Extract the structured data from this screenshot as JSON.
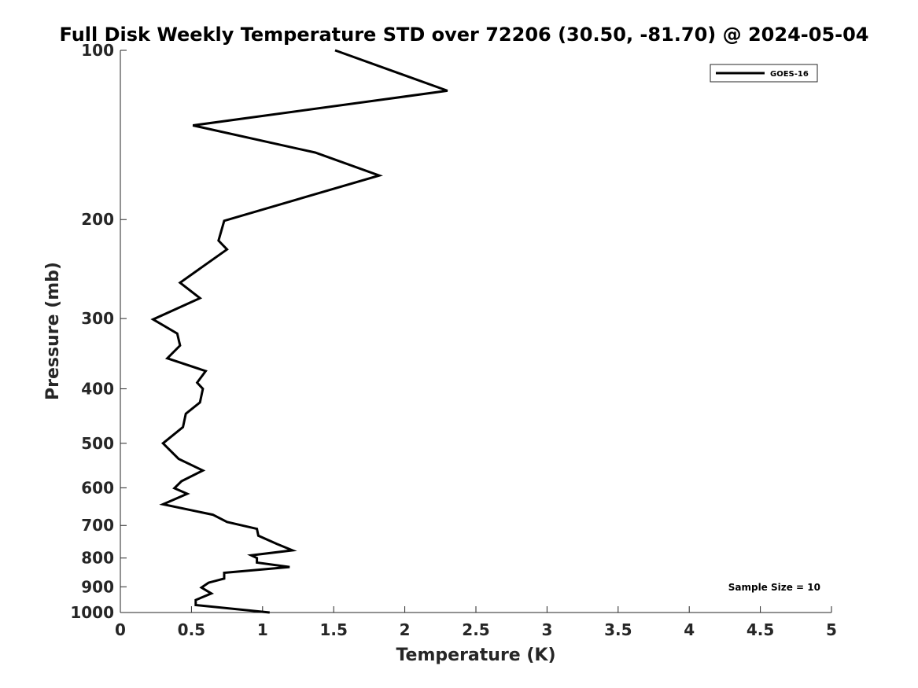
{
  "chart_data": {
    "type": "line",
    "title": "Full Disk Weekly Temperature STD over 72206 (30.50, -81.70) @ 2024-05-04",
    "xlabel": "Temperature (K)",
    "ylabel": "Pressure (mb)",
    "xlim": [
      0,
      5
    ],
    "ylim": [
      100,
      1000
    ],
    "yscale": "log",
    "y_reversed": true,
    "grid": false,
    "legend_position": "top-right",
    "xticks": [
      0,
      0.5,
      1,
      1.5,
      2,
      2.5,
      3,
      3.5,
      4,
      4.5,
      5
    ],
    "xtick_labels": [
      "0",
      "0.5",
      "1",
      "1.5",
      "2",
      "2.5",
      "3",
      "3.5",
      "4",
      "4.5",
      "5"
    ],
    "yticks": [
      100,
      200,
      300,
      400,
      500,
      600,
      700,
      800,
      900,
      1000
    ],
    "ytick_labels": [
      "100",
      "200",
      "300",
      "400",
      "500",
      "600",
      "700",
      "800",
      "900",
      "1000"
    ],
    "series": [
      {
        "name": "GOES-16",
        "color": "#000000",
        "points": [
          [
            1.51,
            100
          ],
          [
            2.3,
            118
          ],
          [
            0.51,
            136
          ],
          [
            1.37,
            152
          ],
          [
            1.82,
            167
          ],
          [
            0.73,
            201
          ],
          [
            0.69,
            218
          ],
          [
            0.75,
            226
          ],
          [
            0.42,
            259
          ],
          [
            0.56,
            276
          ],
          [
            0.23,
            301
          ],
          [
            0.4,
            319
          ],
          [
            0.42,
            335
          ],
          [
            0.33,
            353
          ],
          [
            0.6,
            372
          ],
          [
            0.54,
            390
          ],
          [
            0.58,
            400
          ],
          [
            0.56,
            423
          ],
          [
            0.46,
            443
          ],
          [
            0.44,
            468
          ],
          [
            0.3,
            500
          ],
          [
            0.41,
            533
          ],
          [
            0.58,
            559
          ],
          [
            0.43,
            584
          ],
          [
            0.38,
            601
          ],
          [
            0.47,
            615
          ],
          [
            0.3,
            642
          ],
          [
            0.65,
            670
          ],
          [
            0.75,
            690
          ],
          [
            0.96,
            710
          ],
          [
            0.97,
            730
          ],
          [
            1.1,
            755
          ],
          [
            1.21,
            775
          ],
          [
            0.92,
            791
          ],
          [
            0.96,
            800
          ],
          [
            0.96,
            815
          ],
          [
            1.19,
            830
          ],
          [
            0.73,
            850
          ],
          [
            0.73,
            870
          ],
          [
            0.62,
            885
          ],
          [
            0.57,
            903
          ],
          [
            0.64,
            925
          ],
          [
            0.53,
            950
          ],
          [
            0.53,
            970
          ],
          [
            1.05,
            1000
          ]
        ]
      }
    ],
    "annotations": [
      "Sample Size = 10"
    ]
  }
}
